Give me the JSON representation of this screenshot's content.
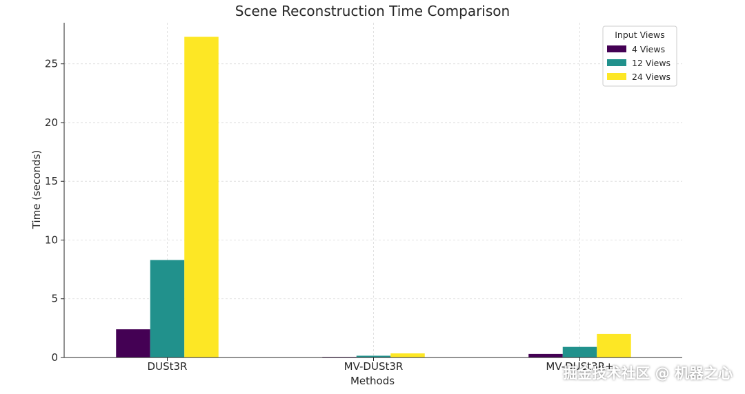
{
  "chart_data": {
    "type": "bar",
    "title": "Scene Reconstruction Time Comparison",
    "xlabel": "Methods",
    "ylabel": "Time (seconds)",
    "categories": [
      "DUSt3R",
      "MV-DUSt3R",
      "MV-DUSt3R+"
    ],
    "series": [
      {
        "name": "4 Views",
        "values": [
          2.4,
          0.05,
          0.3
        ],
        "color": "#440154"
      },
      {
        "name": "12 Views",
        "values": [
          8.3,
          0.15,
          0.9
        ],
        "color": "#21918c"
      },
      {
        "name": "24 Views",
        "values": [
          27.3,
          0.35,
          2.0
        ],
        "color": "#fde725"
      }
    ],
    "ylim": [
      0,
      28.5
    ],
    "yticks": [
      0,
      5,
      10,
      15,
      20,
      25
    ],
    "grid": true,
    "legend": {
      "title": "Input Views",
      "position": "top-right"
    }
  },
  "watermark": "掘金技术社区 @ 机器之心"
}
